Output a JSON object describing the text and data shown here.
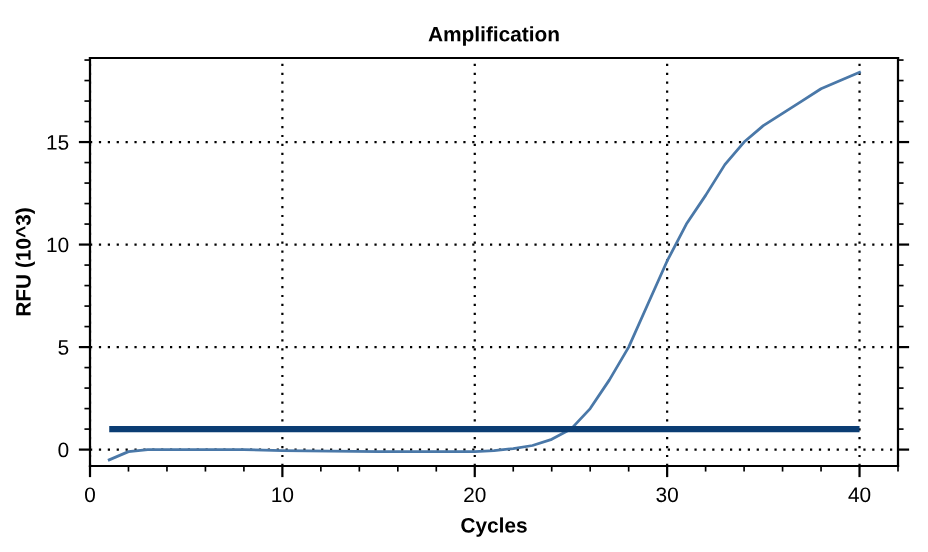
{
  "chart_data": {
    "type": "line",
    "title": "Amplification",
    "xlabel": "Cycles",
    "ylabel": "RFU (10^3)",
    "x": [
      1,
      2,
      3,
      5,
      8,
      10,
      15,
      20,
      21,
      22,
      23,
      24,
      25,
      26,
      27,
      28,
      29,
      30,
      31,
      32,
      33,
      34,
      35,
      36,
      37,
      38,
      39,
      40
    ],
    "series": [
      {
        "color": "#4a78a8",
        "values": [
          -0.5,
          -0.1,
          0,
          0,
          0,
          -0.05,
          -0.1,
          -0.1,
          -0.05,
          0.05,
          0.2,
          0.5,
          1.0,
          2.0,
          3.4,
          5.0,
          7.1,
          9.2,
          11.0,
          12.4,
          13.9,
          15.0,
          15.8,
          16.4,
          17.0,
          17.6,
          18.0,
          18.4
        ]
      }
    ],
    "ref_lines": [
      {
        "axis": "y",
        "value": 1,
        "color": "#0b3d73",
        "line_style": "solid"
      }
    ],
    "xlim": [
      0,
      42
    ],
    "ylim": [
      -0.8,
      19.1
    ],
    "xticks": [
      0,
      10,
      20,
      30,
      40
    ],
    "yticks": [
      0,
      5,
      10,
      15
    ],
    "grid": true,
    "legend": false,
    "marker": "none",
    "line_style": "solid"
  }
}
